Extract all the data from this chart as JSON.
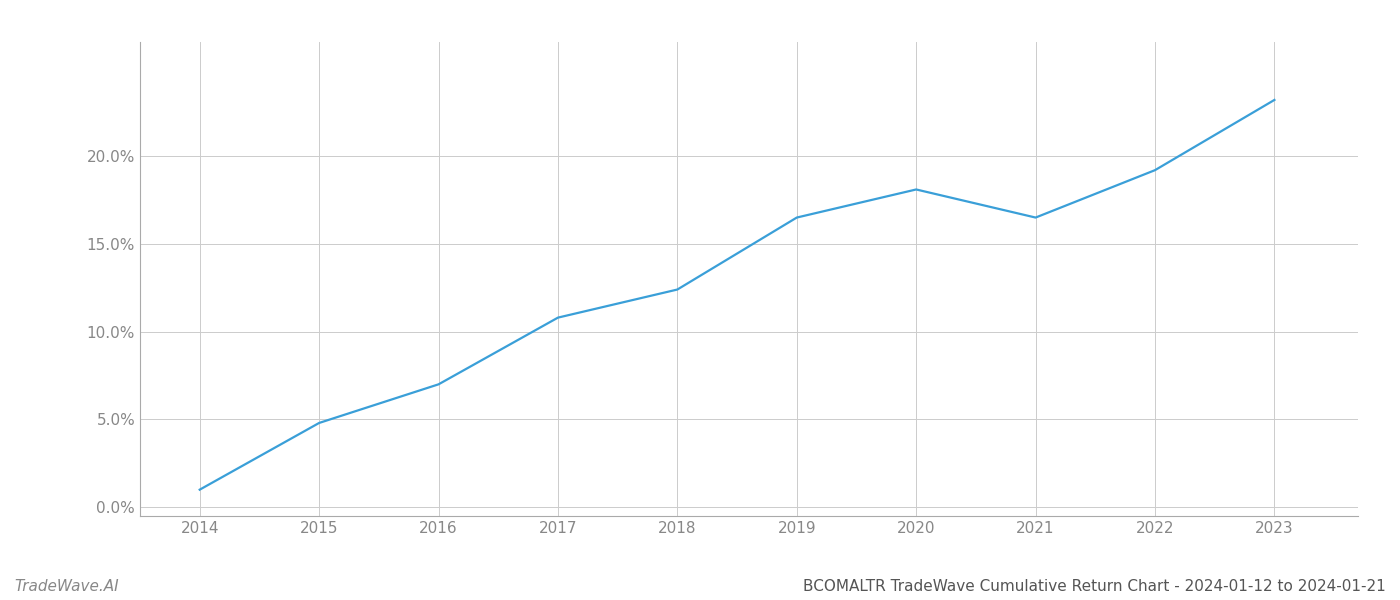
{
  "x_years": [
    2014,
    2015,
    2016,
    2017,
    2018,
    2019,
    2020,
    2021,
    2022,
    2023
  ],
  "y_values": [
    0.01,
    0.048,
    0.07,
    0.108,
    0.124,
    0.165,
    0.181,
    0.165,
    0.192,
    0.232
  ],
  "line_color": "#3a9fd8",
  "line_width": 1.6,
  "background_color": "#ffffff",
  "grid_color": "#cccccc",
  "title": "BCOMALTR TradeWave Cumulative Return Chart - 2024-01-12 to 2024-01-21",
  "watermark": "TradeWave.AI",
  "xlim": [
    2013.5,
    2023.7
  ],
  "ylim": [
    -0.005,
    0.265
  ],
  "yticks": [
    0.0,
    0.05,
    0.1,
    0.15,
    0.2
  ],
  "ytick_labels": [
    "0.0%",
    "5.0%",
    "10.0%",
    "15.0%",
    "20.0%"
  ],
  "xticks": [
    2014,
    2015,
    2016,
    2017,
    2018,
    2019,
    2020,
    2021,
    2022,
    2023
  ],
  "figsize": [
    14.0,
    6.0
  ],
  "dpi": 100,
  "title_fontsize": 11,
  "watermark_fontsize": 11,
  "tick_fontsize": 11,
  "title_color": "#555555",
  "tick_color": "#888888",
  "watermark_color": "#888888",
  "spine_color": "#aaaaaa"
}
